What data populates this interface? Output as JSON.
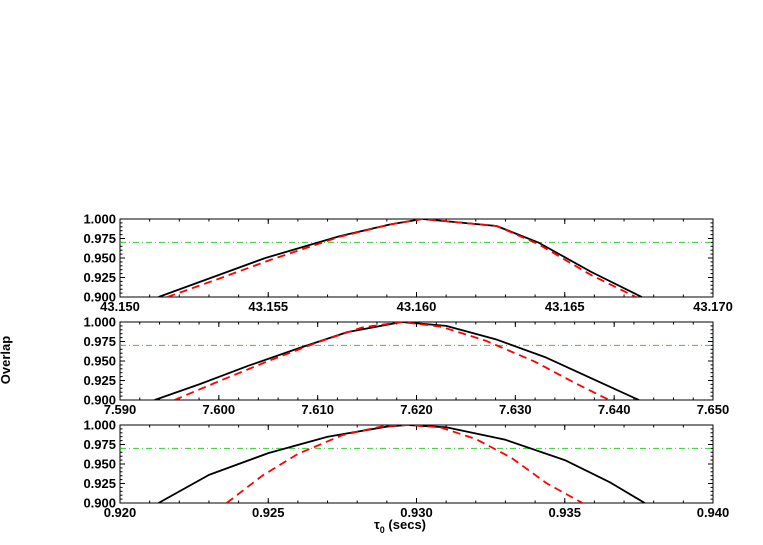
{
  "chart_data": [
    {
      "type": "line",
      "xlim": [
        43.15,
        43.17
      ],
      "ylim": [
        0.9,
        1.0
      ],
      "xticks": [
        "43.150",
        "43.155",
        "43.160",
        "43.165",
        "43.170"
      ],
      "yticks": [
        "0.900",
        "0.925",
        "0.950",
        "0.975",
        "1.000"
      ],
      "threshold": 0.97,
      "series": [
        {
          "style": "solid",
          "color": "#000000",
          "x": [
            43.1513,
            43.1531,
            43.1549,
            43.1574,
            43.1591,
            43.1602,
            43.1627,
            43.1641,
            43.1659,
            43.1676
          ],
          "y": [
            0.9,
            0.925,
            0.95,
            0.978,
            0.993,
            1.0,
            0.991,
            0.97,
            0.932,
            0.9
          ]
        },
        {
          "style": "dashed",
          "color": "#ff0000",
          "x": [
            43.1516,
            43.1533,
            43.1551,
            43.1574,
            43.1591,
            43.1602,
            43.1627,
            43.1641,
            43.1659,
            43.1674
          ],
          "y": [
            0.9,
            0.923,
            0.948,
            0.977,
            0.993,
            1.0,
            0.991,
            0.968,
            0.928,
            0.9
          ]
        }
      ]
    },
    {
      "type": "line",
      "xlim": [
        7.59,
        7.65
      ],
      "ylim": [
        0.9,
        1.0
      ],
      "xticks": [
        "7.590",
        "7.600",
        "7.610",
        "7.620",
        "7.630",
        "7.640",
        "7.650"
      ],
      "yticks": [
        "0.900",
        "0.925",
        "0.950",
        "0.975",
        "1.000"
      ],
      "threshold": 0.97,
      "series": [
        {
          "style": "solid",
          "color": "#000000",
          "x": [
            7.5935,
            7.598,
            7.603,
            7.608,
            7.613,
            7.6185,
            7.623,
            7.628,
            7.633,
            7.638,
            7.6425
          ],
          "y": [
            0.9,
            0.92,
            0.944,
            0.966,
            0.987,
            1.0,
            0.995,
            0.978,
            0.955,
            0.926,
            0.9
          ]
        },
        {
          "style": "dashed",
          "color": "#ff0000",
          "x": [
            7.5955,
            7.6,
            7.605,
            7.61,
            7.6145,
            7.6185,
            7.6225,
            7.627,
            7.632,
            7.636,
            7.6395
          ],
          "y": [
            0.9,
            0.924,
            0.95,
            0.974,
            0.993,
            1.0,
            0.994,
            0.976,
            0.949,
            0.922,
            0.9
          ]
        }
      ]
    },
    {
      "type": "line",
      "xlim": [
        0.92,
        0.94
      ],
      "ylim": [
        0.9,
        1.0
      ],
      "xticks": [
        "0.920",
        "0.925",
        "0.930",
        "0.935",
        "0.940"
      ],
      "yticks": [
        "0.900",
        "0.925",
        "0.950",
        "0.975",
        "1.000"
      ],
      "threshold": 0.97,
      "xlabel": "τ0 (secs)",
      "series": [
        {
          "style": "solid",
          "color": "#000000",
          "x": [
            0.9213,
            0.923,
            0.925,
            0.927,
            0.929,
            0.9297,
            0.931,
            0.933,
            0.935,
            0.9365,
            0.9377
          ],
          "y": [
            0.9,
            0.936,
            0.964,
            0.985,
            0.998,
            1.0,
            0.997,
            0.981,
            0.955,
            0.927,
            0.9
          ]
        },
        {
          "style": "dashed",
          "color": "#ff0000",
          "x": [
            0.9236,
            0.9248,
            0.926,
            0.9275,
            0.9288,
            0.9297,
            0.9308,
            0.932,
            0.9332,
            0.9344,
            0.9356
          ],
          "y": [
            0.9,
            0.935,
            0.963,
            0.987,
            0.998,
            1.0,
            0.997,
            0.982,
            0.958,
            0.925,
            0.9
          ]
        }
      ]
    }
  ],
  "labels": {
    "ylabel": "Overlap",
    "xlabel_symbol": "τ",
    "xlabel_sub": "0",
    "xlabel_rest": " (secs)"
  }
}
